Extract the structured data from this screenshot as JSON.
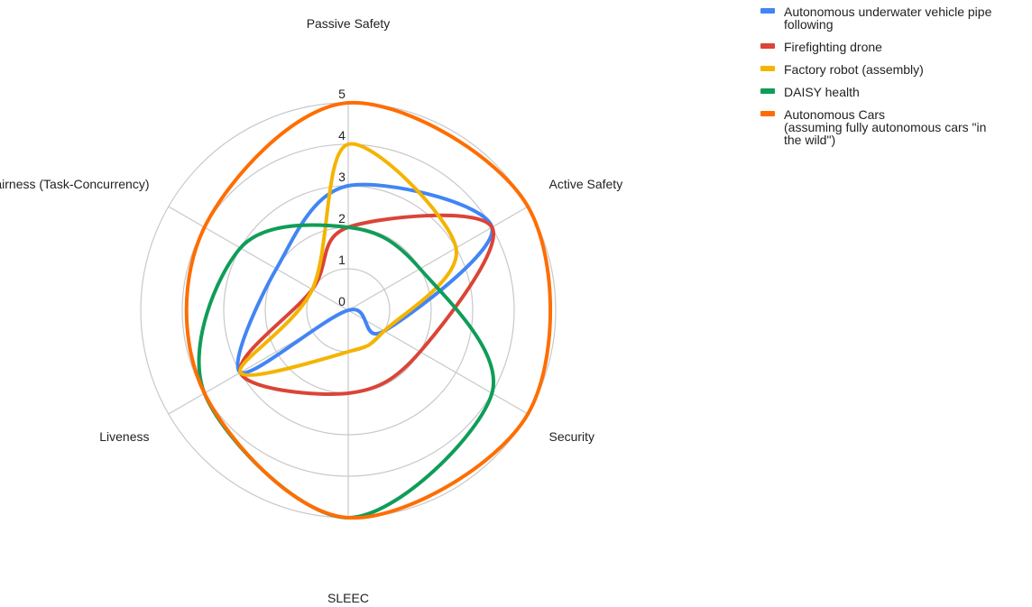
{
  "chart_data": {
    "type": "radar",
    "axes": [
      "Passive Safety",
      "Active Safety",
      "Security",
      "SLEEC",
      "Liveness",
      "Fairness (Task-Concurrency)"
    ],
    "rlim": [
      0,
      5
    ],
    "ticks": [
      "0",
      "1",
      "2",
      "3",
      "4",
      "5"
    ],
    "grid": true,
    "legend_position": "top-right",
    "series": [
      {
        "name": "Autonomous underwater vehicle pipe\nfollowing",
        "color": "#4285f4",
        "values": [
          3,
          4,
          1,
          0,
          3,
          2
        ]
      },
      {
        "name": "Firefighting drone",
        "color": "#db4437",
        "values": [
          2,
          4,
          2,
          2,
          3,
          1
        ]
      },
      {
        "name": "Factory robot (assembly)",
        "color": "#f4b400",
        "values": [
          4,
          3,
          1,
          1,
          3,
          1
        ]
      },
      {
        "name": "DAISY health",
        "color": "#0f9d58",
        "values": [
          2,
          2,
          4,
          5,
          4,
          3
        ]
      },
      {
        "name": "Autonomous Cars\n(assuming fully autonomous cars \"in\nthe wild\")",
        "color": "#ff6d01",
        "values": [
          5,
          5,
          5,
          5,
          4,
          4
        ]
      }
    ]
  }
}
